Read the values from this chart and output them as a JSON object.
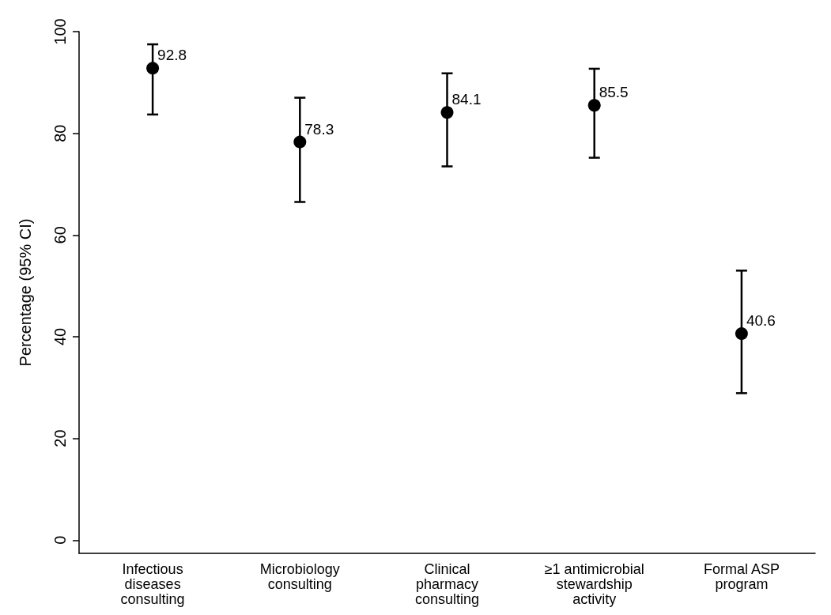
{
  "chart_data": {
    "type": "scatter",
    "ylabel": "Percentage (95% CI)",
    "categories": [
      "Infectious\ndiseases\nconsulting",
      "Microbiology\nconsulting",
      "Clinical\npharmacy\nconsulting",
      "≥1 antimicrobial\nstewardship\nactivity",
      "Formal ASP\nprogram"
    ],
    "values": [
      92.8,
      78.3,
      84.1,
      85.5,
      40.6
    ],
    "errors": [
      [
        83.7,
        97.5
      ],
      [
        66.5,
        87.0
      ],
      [
        73.5,
        91.8
      ],
      [
        75.2,
        92.7
      ],
      [
        28.9,
        53.0
      ]
    ],
    "color": "#000000",
    "marker": "circle",
    "data_labels": true,
    "ylim": [
      -2.6,
      100
    ],
    "yticks": [
      0,
      20,
      40,
      60,
      80,
      100
    ],
    "grid": false
  }
}
